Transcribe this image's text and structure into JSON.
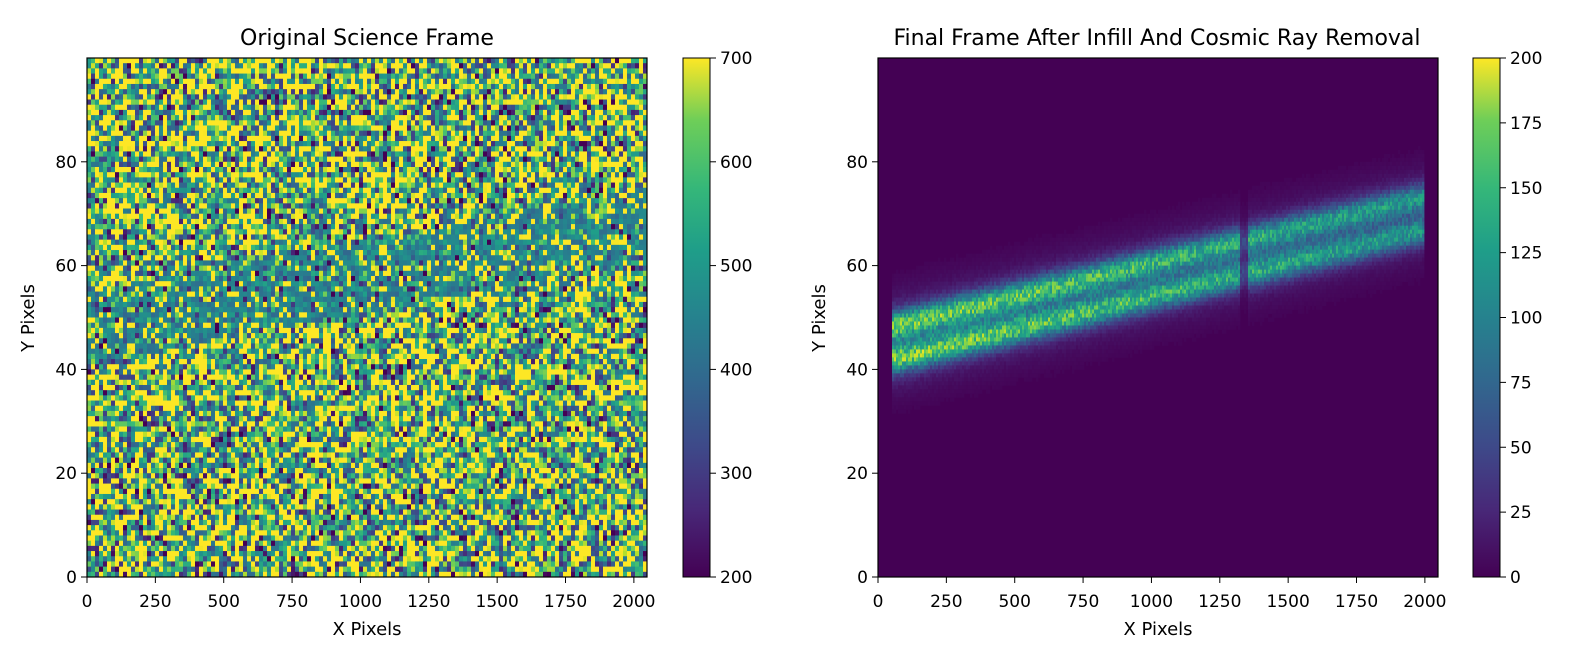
{
  "chart_data": [
    {
      "type": "heatmap",
      "title": "Original Science Frame",
      "xlabel": "X Pixels",
      "ylabel": "Y Pixels",
      "xlim": [
        0,
        2048
      ],
      "ylim": [
        0,
        100
      ],
      "xticks": [
        0,
        250,
        500,
        750,
        1000,
        1250,
        1500,
        1750,
        2000
      ],
      "yticks": [
        0,
        20,
        40,
        60,
        80
      ],
      "colormap": "viridis",
      "colorbar": {
        "range": [
          200,
          700
        ],
        "ticks": [
          200,
          300,
          400,
          500,
          600,
          700
        ]
      },
      "description_values": {
        "background_level": 450,
        "noise_dominated": true,
        "faint_trace": {
          "x": [
            0,
            700,
            2048
          ],
          "y_center": [
            48,
            54,
            68
          ]
        }
      }
    },
    {
      "type": "heatmap",
      "title": "Final Frame After Infill And Cosmic Ray Removal",
      "xlabel": "X Pixels",
      "ylabel": "Y Pixels",
      "xlim": [
        0,
        2048
      ],
      "ylim": [
        0,
        100
      ],
      "xticks": [
        0,
        250,
        500,
        750,
        1000,
        1250,
        1500,
        1750,
        2000
      ],
      "yticks": [
        0,
        20,
        40,
        60,
        80
      ],
      "colormap": "viridis",
      "colorbar": {
        "range": [
          0,
          200
        ],
        "ticks": [
          0,
          25,
          50,
          75,
          100,
          125,
          150,
          175,
          200
        ]
      },
      "trace": {
        "x_start": 50,
        "x_end": 2000,
        "center_at_start": 45,
        "center_at_end": 70,
        "half_width": 9,
        "peak_value": 150,
        "gap_x": 1340
      }
    }
  ],
  "colors": {
    "viridis_low": "#440154",
    "viridis_mid": "#21918c",
    "viridis_high": "#fde725"
  }
}
